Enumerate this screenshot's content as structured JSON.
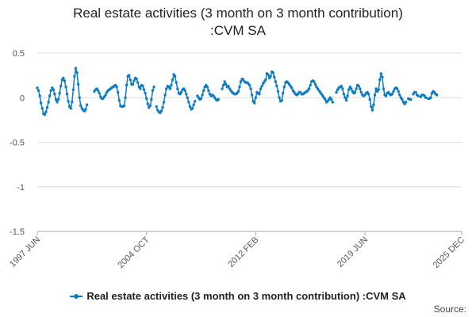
{
  "chart_data": {
    "type": "line",
    "title_lines": [
      "Real estate activities (3 month on 3 month contribution)",
      ":CVM SA"
    ],
    "y_ticks": [
      "0.5",
      "0",
      "-0.5",
      "-1",
      "-1.5"
    ],
    "ylim": [
      -1.5,
      0.5
    ],
    "x_tick_labels": [
      "1997 JUN",
      "2004 OCT",
      "2012 FEB",
      "2019 JUN",
      "2025 DEC"
    ],
    "x_tick_positions": [
      0,
      88,
      176,
      264,
      342
    ],
    "x_range": [
      0,
      342
    ],
    "grid": "horizontal",
    "legend_position": "bottom",
    "source_label": "Source:",
    "series": [
      {
        "name": "Real estate activities (3 month on 3 month contribution) :CVM SA",
        "color": "#0e7cc2",
        "values": [
          0.11,
          0.08,
          0.02,
          -0.06,
          -0.12,
          -0.18,
          -0.19,
          -0.16,
          -0.11,
          -0.05,
          0.02,
          0.08,
          0.11,
          0.09,
          0.04,
          -0.02,
          -0.05,
          -0.02,
          0.05,
          0.13,
          0.2,
          0.22,
          0.19,
          0.12,
          0.04,
          -0.04,
          -0.1,
          -0.12,
          -0.05,
          0.09,
          0.24,
          0.33,
          0.28,
          0.15,
          0.0,
          -0.09,
          -0.12,
          -0.14,
          -0.15,
          -0.13,
          -0.08,
          null,
          null,
          null,
          null,
          null,
          0.07,
          0.09,
          0.1,
          0.08,
          0.05,
          0.01,
          -0.01,
          -0.01,
          0.01,
          0.03,
          0.06,
          0.08,
          0.09,
          0.1,
          0.11,
          0.12,
          0.13,
          0.14,
          0.12,
          0.06,
          -0.03,
          -0.09,
          -0.1,
          -0.1,
          -0.09,
          0.0,
          0.14,
          0.24,
          0.25,
          0.2,
          0.15,
          0.15,
          0.19,
          0.22,
          0.21,
          0.17,
          0.12,
          0.1,
          0.14,
          0.13,
          0.09,
          0.05,
          -0.01,
          -0.07,
          -0.11,
          -0.09,
          -0.02,
          0.08,
          0.12,
          null,
          -0.1,
          -0.14,
          -0.16,
          -0.17,
          -0.15,
          -0.11,
          -0.05,
          0.03,
          0.1,
          0.13,
          0.12,
          0.1,
          0.14,
          0.2,
          0.26,
          0.24,
          0.17,
          0.1,
          0.05,
          0.04,
          0.06,
          0.09,
          0.1,
          0.08,
          0.04,
          0.0,
          -0.05,
          -0.1,
          -0.13,
          -0.12,
          -0.08,
          -0.04,
          null,
          0.02,
          0.0,
          -0.02,
          -0.01,
          0.03,
          0.08,
          0.12,
          0.14,
          0.12,
          0.08,
          0.04,
          0.02,
          0.03,
          0.02,
          0.0,
          -0.02,
          -0.03,
          -0.02,
          null,
          null,
          0.1,
          0.14,
          0.18,
          0.15,
          0.12,
          0.13,
          0.1,
          0.08,
          0.06,
          0.05,
          0.04,
          0.04,
          0.05,
          0.07,
          0.12,
          0.18,
          0.21,
          0.2,
          0.18,
          0.17,
          0.17,
          0.16,
          0.14,
          0.1,
          0.03,
          -0.04,
          -0.06,
          0.0,
          0.06,
          0.05,
          0.04,
          0.1,
          0.13,
          0.16,
          0.18,
          0.2,
          0.27,
          0.26,
          0.22,
          0.24,
          0.29,
          0.28,
          0.23,
          0.18,
          0.13,
          0.07,
          0.0,
          -0.04,
          -0.03,
          0.05,
          0.12,
          0.17,
          0.18,
          0.17,
          0.15,
          0.13,
          0.11,
          0.08,
          0.06,
          0.04,
          0.03,
          0.04,
          0.06,
          0.06,
          0.04,
          0.04,
          0.05,
          0.06,
          0.07,
          0.08,
          0.1,
          0.14,
          0.18,
          0.19,
          0.18,
          0.15,
          0.12,
          0.1,
          0.08,
          0.06,
          0.04,
          0.02,
          0.0,
          -0.02,
          -0.05,
          -0.04,
          -0.02,
          0.0,
          -0.02,
          -0.05,
          null,
          null,
          0.06,
          0.09,
          0.11,
          0.12,
          0.13,
          0.1,
          0.04,
          0.0,
          -0.03,
          0.02,
          0.09,
          0.12,
          0.1,
          0.07,
          0.05,
          0.06,
          0.1,
          0.14,
          0.13,
          0.1,
          0.06,
          0.03,
          0.02,
          0.03,
          0.05,
          0.06,
          0.04,
          -0.02,
          -0.1,
          -0.14,
          -0.08,
          0.03,
          0.1,
          0.07,
          0.09,
          0.2,
          0.27,
          0.23,
          0.1,
          0.03,
          0.02,
          0.05,
          0.06,
          0.04,
          0.03,
          0.04,
          0.07,
          0.1,
          0.11,
          0.1,
          0.07,
          0.03,
          0.0,
          -0.02,
          -0.05,
          -0.07,
          -0.05,
          null,
          -0.01,
          -0.02,
          -0.02,
          null,
          0.04,
          0.06,
          0.06,
          0.03,
          0.02,
          null,
          0.01,
          0.03,
          0.03,
          0.02,
          0.0,
          null,
          -0.01,
          -0.01,
          0.0,
          0.05,
          0.07,
          0.06,
          0.04,
          0.03
        ]
      }
    ]
  }
}
